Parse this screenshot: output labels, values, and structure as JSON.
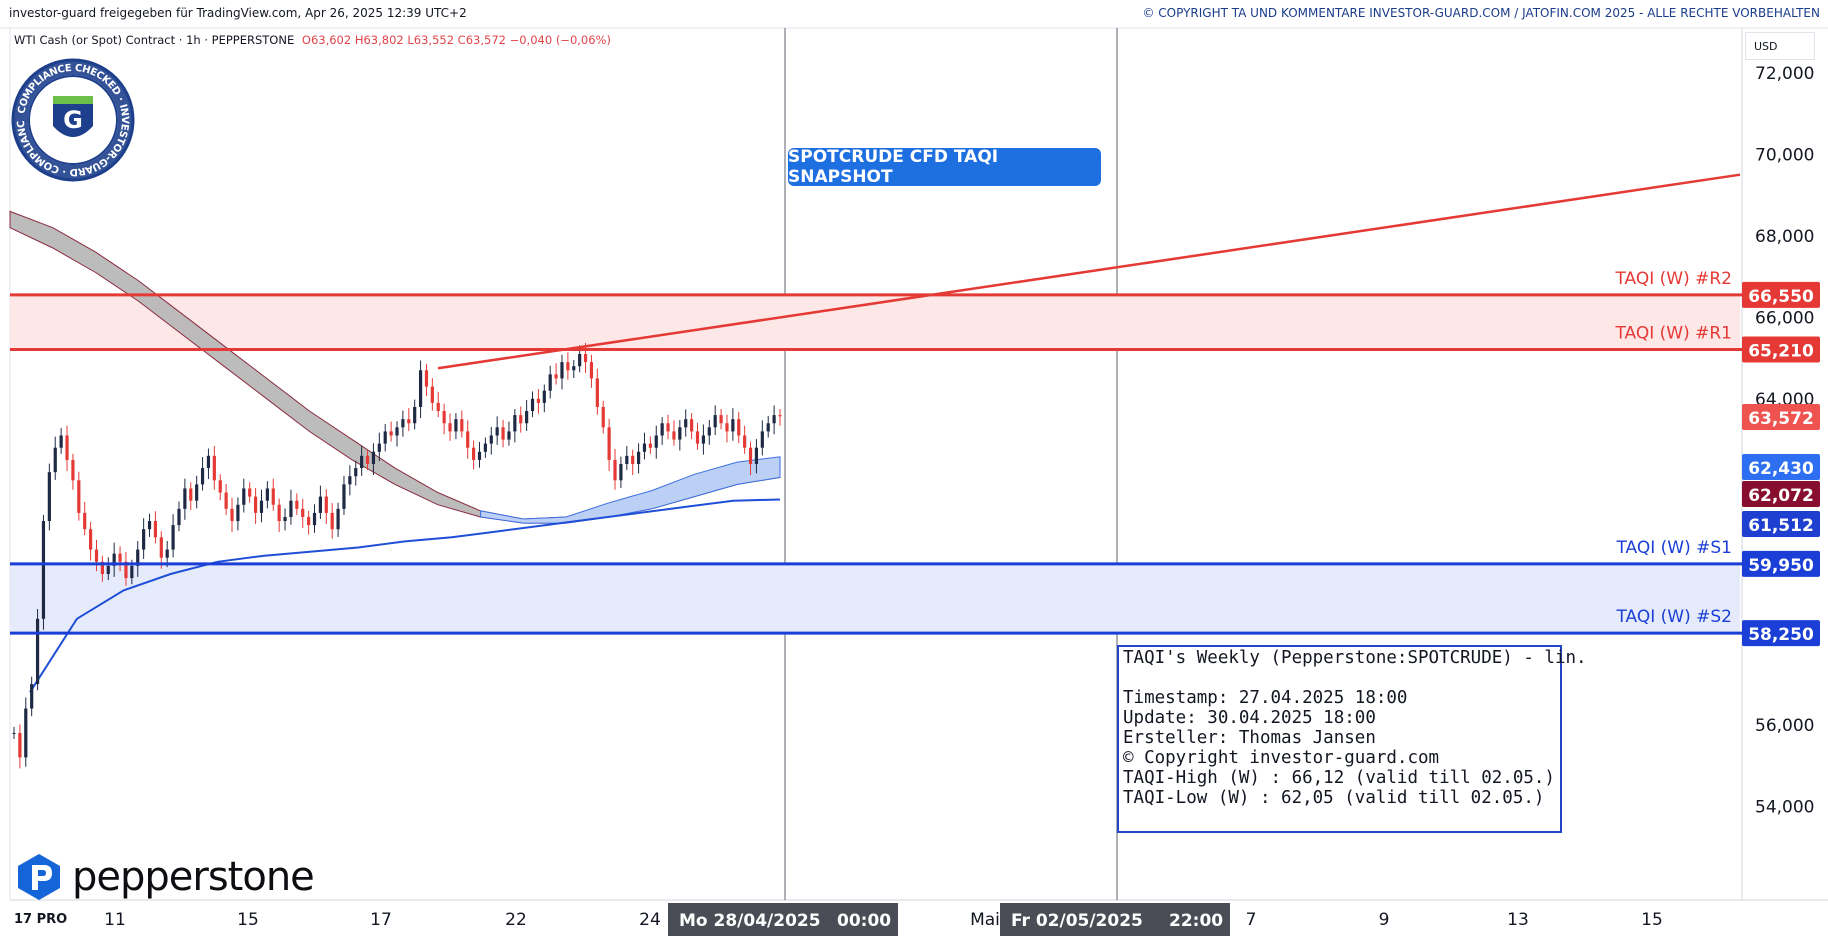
{
  "header": {
    "share_text": "investor-guard freigegeben für TradingView.com, Apr 26, 2025 12:39 UTC+2",
    "copyright_text": "© COPYRIGHT TA UND KOMMENTARE INVESTOR-GUARD.COM / JATOFIN.COM 2025 - ALLE RECHTE VORBEHALTEN"
  },
  "legend": {
    "symbol": "WTI Cash (or Spot) Contract · 1h · PEPPERSTONE",
    "ohlc": "O63,602  H63,802  L63,552  C63,572  −0,040 (−0,06%)"
  },
  "badge": {
    "ring_text": "COMPLIANCE CHECKED · INVESTOR-GUARD ·",
    "letter": "G"
  },
  "snapshot_label": "SPOTCRUDE CFD TAQI SNAPSHOT",
  "currency": "USD",
  "brand": {
    "name": "pepperstone",
    "tv_logo": "17 PRO"
  },
  "info_box": {
    "title": "TAQI's Weekly (Pepperstone:SPOTCRUDE) - lin.",
    "timestamp": "Timestamp: 27.04.2025 18:00",
    "update": "Update: 30.04.2025 18:00",
    "author": "Ersteller: Thomas Jansen",
    "copyright": "© Copyright investor-guard.com",
    "taqi_high": "TAQI-High (W) : 66,12 (valid till 02.05.)",
    "taqi_low": "TAQI-Low (W) : 62,05 (valid till 02.05.)"
  },
  "colors": {
    "resistance": "#e53935",
    "support": "#1b3fd6",
    "up_candle": "#1e2a44",
    "down_candle": "#e53935",
    "ma_blue": "#1e4fd6",
    "cloud_grey": "#b5b5b5",
    "cloud_blue": "#bcd0f5"
  },
  "chart_data": {
    "type": "candlestick",
    "y_axis": {
      "min": 51.7,
      "max": 73.1,
      "ticks": [
        "72,000",
        "70,000",
        "68,000",
        "66,000",
        "64,000",
        "56,000",
        "54,000"
      ],
      "tick_values": [
        72,
        70,
        68,
        66,
        64,
        56,
        54
      ]
    },
    "x_axis": {
      "ticks": [
        "11",
        "15",
        "17",
        "22",
        "24",
        "Mai",
        "7",
        "9",
        "13",
        "15"
      ],
      "markers": [
        {
          "label": "Mo 28/04/2025",
          "time": "00:00"
        },
        {
          "label": "Fr 02/05/2025",
          "time": "22:00"
        }
      ]
    },
    "levels": [
      {
        "name": "TAQI (W) #R2",
        "value": 66.55,
        "label": "66,550",
        "kind": "resistance"
      },
      {
        "name": "TAQI (W) #R1",
        "value": 65.21,
        "label": "65,210",
        "kind": "resistance"
      },
      {
        "name": "TAQI (W) #S1",
        "value": 59.95,
        "label": "59,950",
        "kind": "support"
      },
      {
        "name": "TAQI (W) #S2",
        "value": 58.25,
        "label": "58,250",
        "kind": "support"
      }
    ],
    "price_tags": [
      {
        "label": "63,572",
        "value": 63.572,
        "color": "#ef5350"
      },
      {
        "label": "62,430",
        "value": 62.43,
        "color": "#2e6ff2"
      },
      {
        "label": "62,072",
        "value": 62.072,
        "color": "#880e2f"
      },
      {
        "label": "61,512",
        "value": 61.512,
        "color": "#1e3fd0"
      }
    ],
    "trendline": {
      "from": 64.75,
      "to": 69.5
    },
    "close_path": [
      55.8,
      55.2,
      56.4,
      57.0,
      58.6,
      61.0,
      62.2,
      62.8,
      63.1,
      62.5,
      62.0,
      61.2,
      60.8,
      60.3,
      60.0,
      59.7,
      59.9,
      60.2,
      60.0,
      59.6,
      59.9,
      60.3,
      60.8,
      61.0,
      60.6,
      60.1,
      60.3,
      60.9,
      61.3,
      61.8,
      61.5,
      61.9,
      62.3,
      62.6,
      62.0,
      61.7,
      61.3,
      61.0,
      61.4,
      61.8,
      61.6,
      61.2,
      61.5,
      61.8,
      61.4,
      61.0,
      61.1,
      61.5,
      61.3,
      61.1,
      60.9,
      61.2,
      61.6,
      61.2,
      60.8,
      61.3,
      61.9,
      62.1,
      62.3,
      62.6,
      62.4,
      62.7,
      62.9,
      63.2,
      63.1,
      63.3,
      63.5,
      63.4,
      63.8,
      64.7,
      64.3,
      63.9,
      63.7,
      63.4,
      63.2,
      63.5,
      63.2,
      62.8,
      62.5,
      62.7,
      62.9,
      63.1,
      63.3,
      63.0,
      63.2,
      63.6,
      63.4,
      63.7,
      64.0,
      63.9,
      64.2,
      64.6,
      64.5,
      64.9,
      64.7,
      64.8,
      65.1,
      64.9,
      64.5,
      63.8,
      63.3,
      62.5,
      62.0,
      62.4,
      62.6,
      62.4,
      62.7,
      62.9,
      62.8,
      63.1,
      63.4,
      63.2,
      63.0,
      63.3,
      63.5,
      63.2,
      62.9,
      63.1,
      63.3,
      63.6,
      63.4,
      63.2,
      63.5,
      63.1,
      62.8,
      62.4,
      62.8,
      63.2,
      63.4,
      63.6,
      63.572
    ],
    "ma_blue": [
      56.8,
      58.6,
      59.3,
      59.7,
      60.0,
      60.15,
      60.25,
      60.35,
      60.5,
      60.6,
      60.75,
      60.9,
      61.05,
      61.2,
      61.35,
      61.5,
      61.53
    ],
    "cloud_grey_upper": [
      68.6,
      68.2,
      67.6,
      66.9,
      66.1,
      65.3,
      64.5,
      63.7,
      63.0,
      62.3,
      61.7,
      61.25,
      61.05,
      61.1,
      61.3,
      61.6,
      62.0,
      62.3,
      62.43
    ],
    "cloud_grey_lower": [
      68.2,
      67.7,
      67.1,
      66.4,
      65.6,
      64.8,
      64.0,
      63.2,
      62.5,
      61.9,
      61.4,
      61.1,
      60.95,
      60.95,
      61.1,
      61.3,
      61.6,
      61.9,
      62.07
    ]
  }
}
